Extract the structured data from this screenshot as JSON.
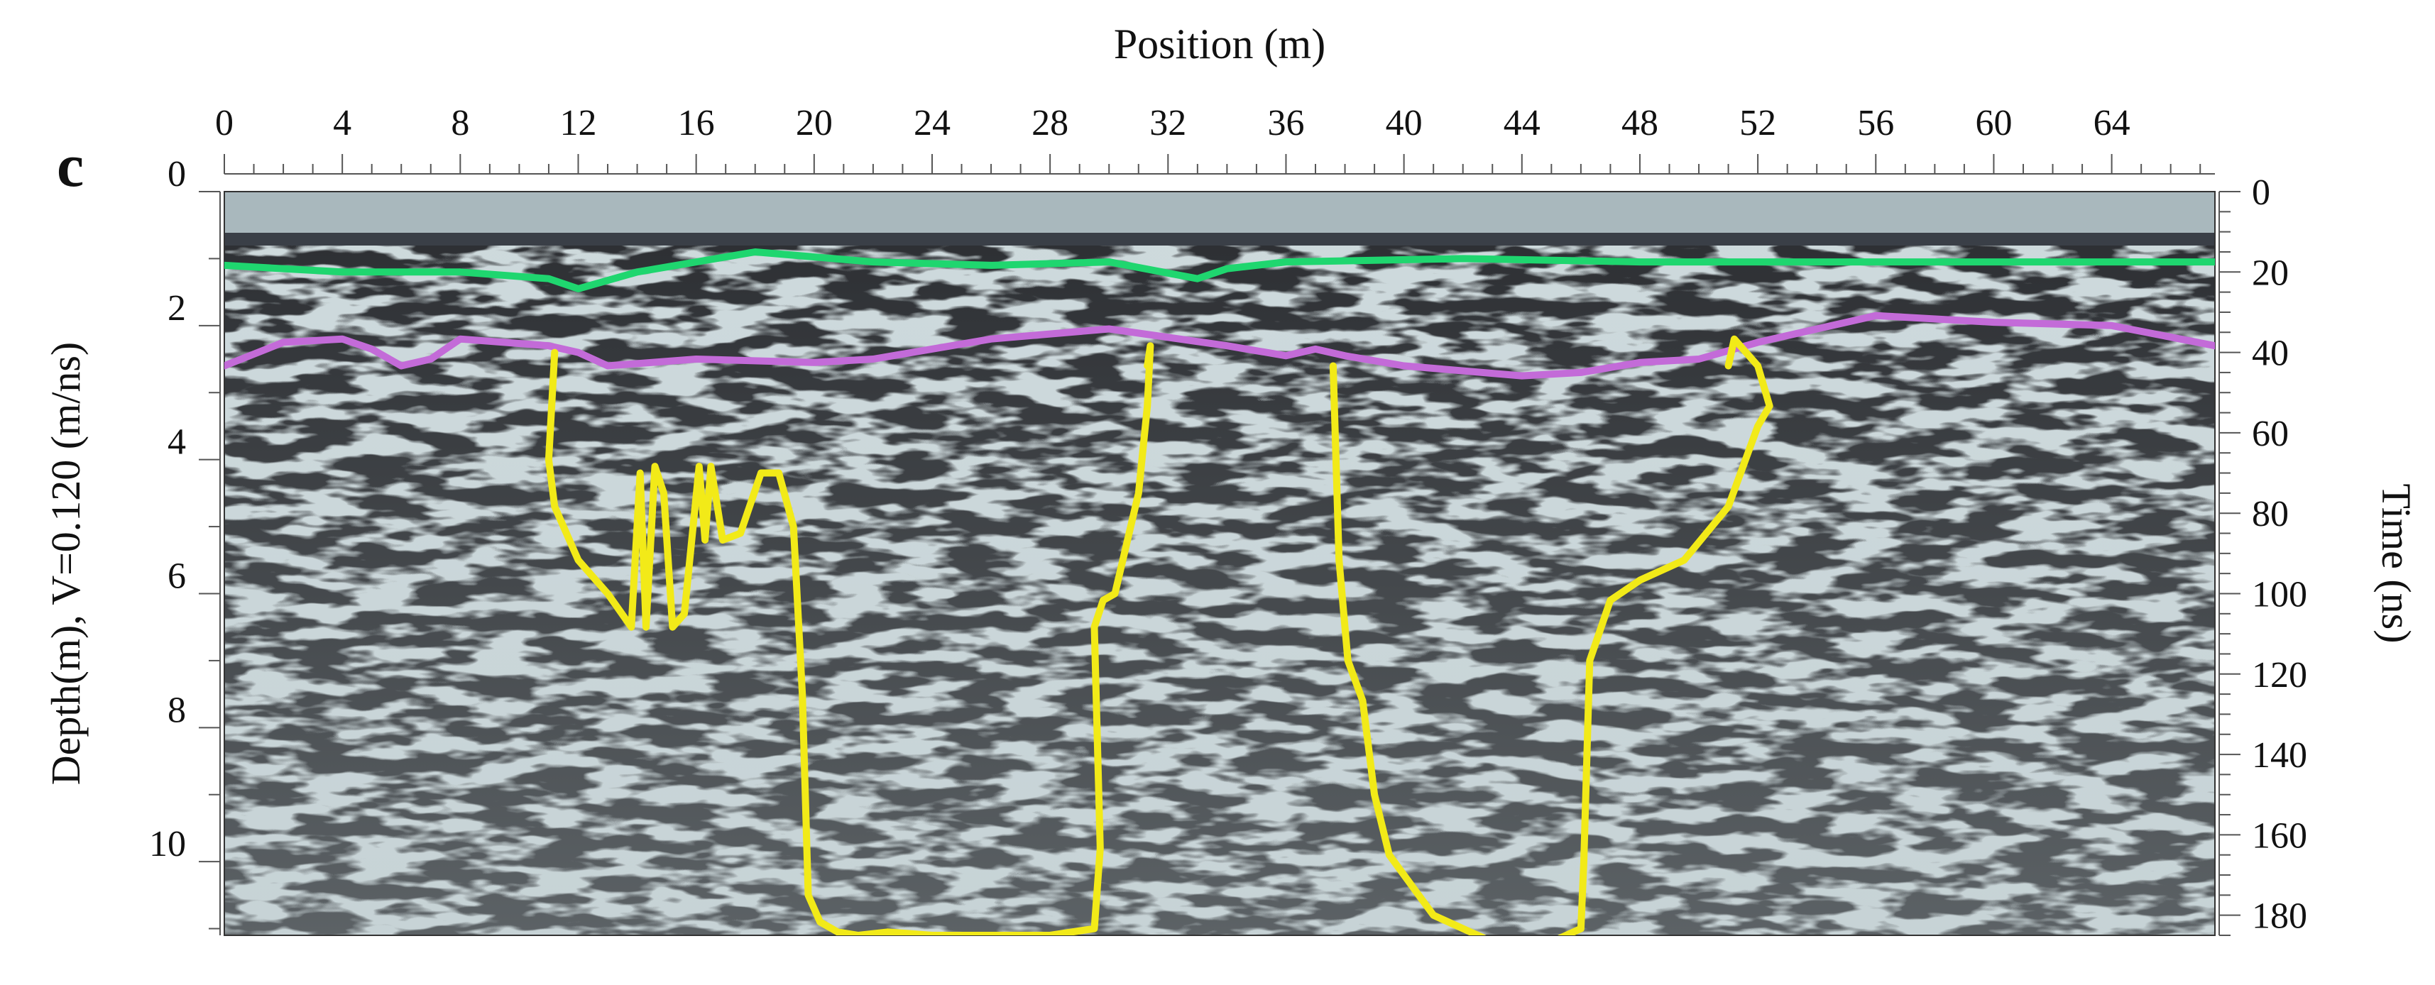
{
  "chart_data": {
    "type": "line",
    "panel_label": "c",
    "title": "",
    "xlabel": "Position (m)",
    "ylabel_left": "Depth(m), V=0.120 (m/ns)",
    "ylabel_right": "Time (ns)",
    "x_ticks": [
      "0",
      "4",
      "8",
      "12",
      "16",
      "20",
      "24",
      "28",
      "32",
      "36",
      "40",
      "44",
      "48",
      "52",
      "56",
      "60",
      "64"
    ],
    "depth_ticks": [
      "0",
      "2",
      "4",
      "6",
      "8",
      "10"
    ],
    "time_ticks": [
      "0",
      "20",
      "40",
      "60",
      "80",
      "100",
      "120",
      "140",
      "160",
      "180"
    ],
    "xlim": [
      0,
      67.5
    ],
    "depth_lim": [
      0,
      11.1
    ],
    "time_lim": [
      0,
      185
    ],
    "grid": false,
    "background": "GPR radargram (grayscale reflection image)",
    "series": [
      {
        "color": "#1fd66f",
        "x": [
          0,
          4,
          8,
          11,
          12,
          14,
          18,
          22,
          26,
          30,
          33,
          34,
          36,
          42,
          48,
          54,
          60,
          67.5
        ],
        "y": [
          1.1,
          1.2,
          1.2,
          1.3,
          1.45,
          1.2,
          0.9,
          1.05,
          1.1,
          1.05,
          1.3,
          1.15,
          1.05,
          1.0,
          1.05,
          1.05,
          1.05,
          1.05
        ]
      },
      {
        "color": "#c36bd8",
        "x": [
          0,
          2,
          4,
          5,
          6,
          7,
          8,
          11,
          12,
          13,
          16,
          20,
          22,
          26,
          30,
          34,
          36,
          37,
          38,
          40,
          44,
          46,
          48,
          50,
          52,
          56,
          60,
          64,
          67.5
        ],
        "y": [
          2.6,
          2.25,
          2.2,
          2.35,
          2.6,
          2.5,
          2.2,
          2.3,
          2.4,
          2.6,
          2.5,
          2.55,
          2.5,
          2.2,
          2.05,
          2.3,
          2.45,
          2.35,
          2.45,
          2.6,
          2.75,
          2.7,
          2.55,
          2.5,
          2.25,
          1.85,
          1.95,
          2.0,
          2.3
        ]
      },
      {
        "color": "#f2ea18",
        "x": [
          11.2,
          11,
          11.2,
          12,
          13,
          13.8,
          14.1,
          14.3,
          14.6,
          14.9,
          15.2,
          15.6,
          16.1,
          16.3,
          16.5,
          16.9,
          17.5,
          18.2,
          18.8,
          19.3,
          19.6,
          19.8,
          20.2,
          20.8,
          21.5,
          22.5,
          24,
          26,
          28,
          29.5,
          29.7,
          29.5,
          29.8,
          30.2,
          31,
          31.3,
          31.4,
          31.3
        ],
        "y": [
          2.4,
          4.0,
          4.7,
          5.5,
          6.0,
          6.5,
          4.2,
          6.5,
          4.1,
          4.5,
          6.5,
          6.3,
          4.1,
          5.2,
          4.1,
          5.2,
          5.1,
          4.2,
          4.2,
          5.0,
          7.5,
          10.5,
          10.9,
          11.05,
          11.1,
          11.05,
          11.1,
          11.1,
          11.1,
          11.0,
          9.8,
          6.5,
          6.1,
          6.0,
          4.5,
          3.2,
          2.3,
          2.6
        ]
      },
      {
        "color": "#f2ea18",
        "x": [
          37.6,
          37.8,
          38.1,
          38.6,
          39,
          39.5,
          41,
          43,
          45,
          46,
          46.1,
          46.3,
          47,
          48,
          49.5,
          51,
          52,
          52.4,
          52,
          51.2,
          51
        ],
        "y": [
          2.6,
          5.5,
          7.0,
          7.6,
          9.0,
          9.9,
          10.8,
          11.2,
          11.2,
          11.0,
          10.0,
          7.0,
          6.1,
          5.8,
          5.5,
          4.7,
          3.5,
          3.2,
          2.6,
          2.2,
          2.6
        ]
      }
    ]
  }
}
